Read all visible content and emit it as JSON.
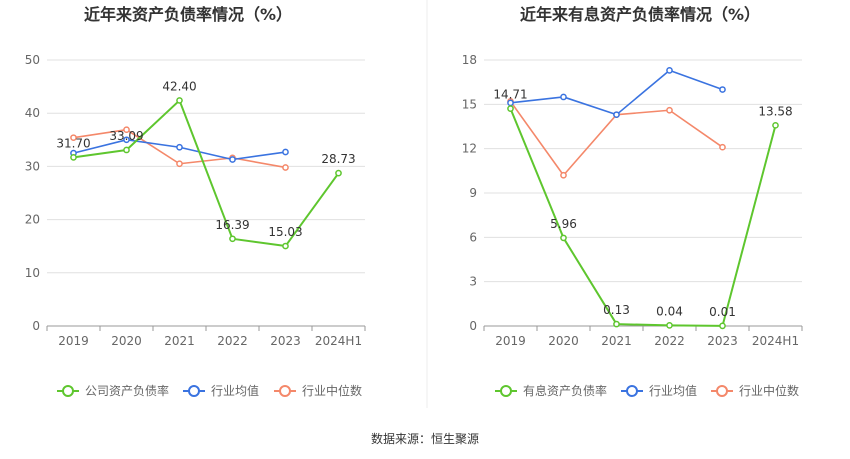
{
  "source_note": "数据来源：恒生聚源",
  "colors": {
    "company": "#5ec62e",
    "avg": "#3a73e0",
    "median": "#f4886a",
    "grid": "#e0e0e0",
    "axis": "#999999"
  },
  "chart_data": [
    {
      "type": "line",
      "title": "近年来资产负债率情况（%）",
      "categories": [
        "2019",
        "2020",
        "2021",
        "2022",
        "2023",
        "2024H1"
      ],
      "ylim": [
        0,
        50
      ],
      "yticks": [
        0,
        10,
        20,
        30,
        40,
        50
      ],
      "grid": true,
      "legend_position": "bottom",
      "series": [
        {
          "name": "公司资产负债率",
          "color": "#5ec62e",
          "labels": true,
          "values": [
            31.7,
            33.09,
            42.4,
            16.39,
            15.03,
            28.73
          ]
        },
        {
          "name": "行业均值",
          "color": "#3a73e0",
          "values": [
            32.5,
            35.0,
            33.6,
            31.3,
            32.7,
            null
          ]
        },
        {
          "name": "行业中位数",
          "color": "#f4886a",
          "values": [
            35.4,
            36.9,
            30.5,
            31.6,
            29.8,
            null
          ]
        }
      ]
    },
    {
      "type": "line",
      "title": "近年来有息资产负债率情况（%）",
      "categories": [
        "2019",
        "2020",
        "2021",
        "2022",
        "2023",
        "2024H1"
      ],
      "ylim": [
        0,
        18
      ],
      "yticks": [
        0,
        3,
        6,
        9,
        12,
        15,
        18
      ],
      "grid": true,
      "legend_position": "bottom",
      "series": [
        {
          "name": "有息资产负债率",
          "color": "#5ec62e",
          "labels": true,
          "values": [
            14.71,
            5.96,
            0.13,
            0.04,
            0.01,
            13.58
          ]
        },
        {
          "name": "行业均值",
          "color": "#3a73e0",
          "values": [
            15.1,
            15.5,
            14.3,
            17.3,
            16.0,
            null
          ]
        },
        {
          "name": "行业中位数",
          "color": "#f4886a",
          "values": [
            15.2,
            10.2,
            14.3,
            14.6,
            12.1,
            null
          ]
        }
      ]
    }
  ]
}
